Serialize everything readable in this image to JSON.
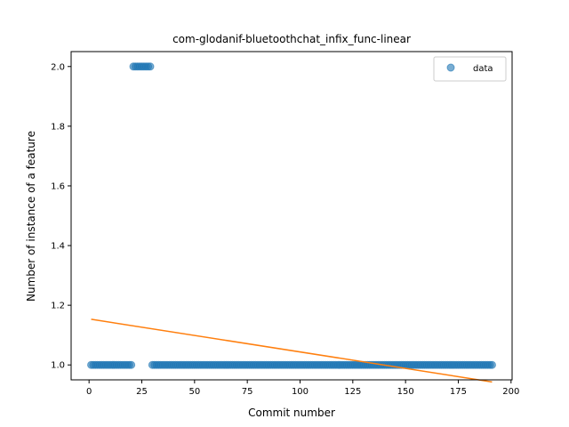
{
  "chart_data": {
    "type": "scatter",
    "title": "com-glodanif-bluetoothchat_infix_func-linear",
    "xlabel": "Commit number",
    "ylabel": "Number of instance of a feature",
    "xlim": [
      -8.5,
      200.5
    ],
    "ylim": [
      0.95,
      2.05
    ],
    "x_ticks": [
      0,
      25,
      50,
      75,
      100,
      125,
      150,
      175,
      200
    ],
    "y_ticks": [
      1.0,
      1.2,
      1.4,
      1.6,
      1.8,
      2.0
    ],
    "grid": false,
    "legend_position": "upper right",
    "series": [
      {
        "name": "data",
        "kind": "scatter",
        "color": "#1f77b4",
        "alpha": 0.6,
        "segments": [
          {
            "x_start": 1,
            "x_end": 20,
            "y": 1
          },
          {
            "x_start": 21,
            "x_end": 29,
            "y": 2
          },
          {
            "x_start": 30,
            "x_end": 191,
            "y": 1
          }
        ]
      },
      {
        "kind": "line",
        "color": "#ff7f0e",
        "x": [
          1,
          191
        ],
        "y": [
          1.153,
          0.943
        ]
      }
    ]
  }
}
